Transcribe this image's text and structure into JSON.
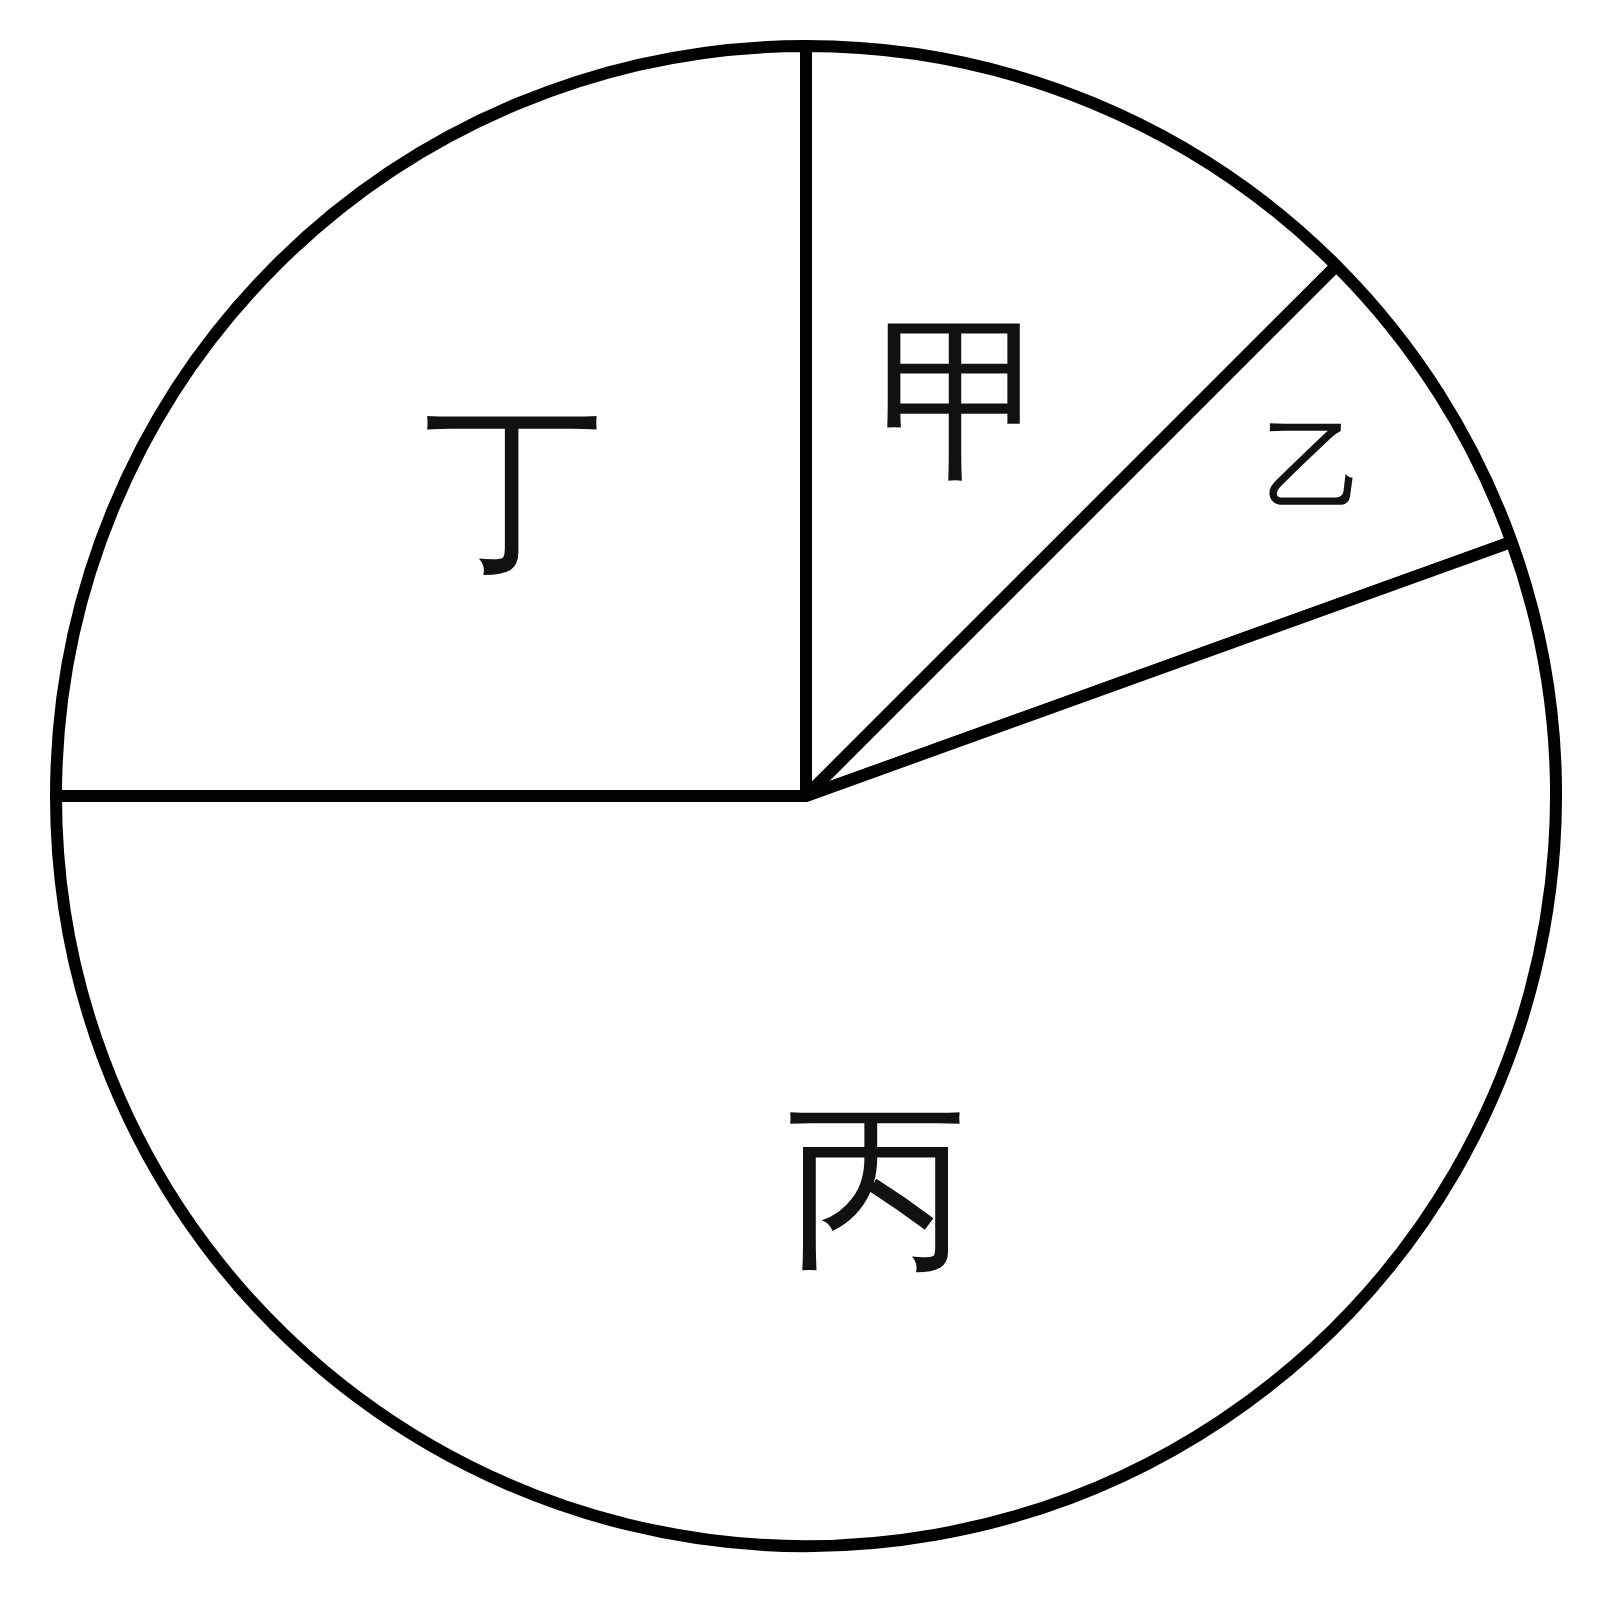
{
  "chart_data": {
    "type": "pie",
    "categories": [
      "甲",
      "乙",
      "丙",
      "丁"
    ],
    "values": [
      12.5,
      7,
      55.5,
      25
    ],
    "colors": [
      "#ffffff",
      "#ffffff",
      "#ffffff",
      "#ffffff"
    ],
    "legend": false
  }
}
